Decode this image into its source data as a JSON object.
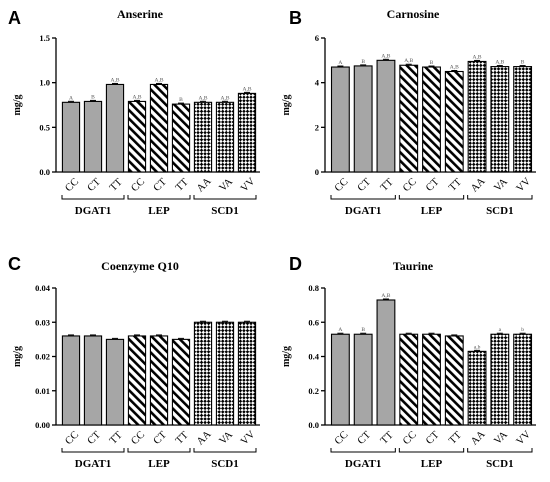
{
  "chart_data": [
    {
      "type": "bar",
      "panel": "A",
      "title": "Anserine",
      "ylabel": "mg/g",
      "ylim": [
        0,
        1.5
      ],
      "yticks": [
        0.0,
        0.5,
        1.0,
        1.5
      ],
      "ytick_labels": [
        "0.0",
        "0.5",
        "1.0",
        "1.5"
      ],
      "categories": [
        "CC",
        "CT",
        "TT",
        "CC",
        "CT",
        "TT",
        "AA",
        "VA",
        "VV"
      ],
      "groups": [
        {
          "name": "DGAT1",
          "fill": "solid"
        },
        {
          "name": "LEP",
          "fill": "diagonal"
        },
        {
          "name": "SCD1",
          "fill": "checker"
        }
      ],
      "values": [
        0.78,
        0.79,
        0.98,
        0.79,
        0.98,
        0.76,
        0.78,
        0.78,
        0.88
      ],
      "annotations": [
        "A",
        "B",
        "A,B",
        "A,B",
        "A,B",
        "B",
        "A,B",
        "A,B",
        "A,B"
      ]
    },
    {
      "type": "bar",
      "panel": "B",
      "title": "Carnosine",
      "ylabel": "mg/g",
      "ylim": [
        0,
        6
      ],
      "yticks": [
        0,
        2,
        4,
        6
      ],
      "ytick_labels": [
        "0",
        "2",
        "4",
        "6"
      ],
      "categories": [
        "CC",
        "CT",
        "TT",
        "CC",
        "CT",
        "TT",
        "AA",
        "VA",
        "VV"
      ],
      "groups": [
        {
          "name": "DGAT1",
          "fill": "solid"
        },
        {
          "name": "LEP",
          "fill": "diagonal"
        },
        {
          "name": "SCD1",
          "fill": "checker"
        }
      ],
      "values": [
        4.7,
        4.75,
        5.0,
        4.78,
        4.7,
        4.5,
        4.95,
        4.72,
        4.72
      ],
      "annotations": [
        "A",
        "B",
        "A,B",
        "A,B",
        "B",
        "A,B",
        "A,B",
        "A,B",
        "B"
      ]
    },
    {
      "type": "bar",
      "panel": "C",
      "title": "Coenzyme Q10",
      "ylabel": "mg/g",
      "ylim": [
        0,
        0.04
      ],
      "yticks": [
        0.0,
        0.01,
        0.02,
        0.03,
        0.04
      ],
      "ytick_labels": [
        "0.00",
        "0.01",
        "0.02",
        "0.03",
        "0.04"
      ],
      "categories": [
        "CC",
        "CT",
        "TT",
        "CC",
        "CT",
        "TT",
        "AA",
        "VA",
        "VV"
      ],
      "groups": [
        {
          "name": "DGAT1",
          "fill": "solid"
        },
        {
          "name": "LEP",
          "fill": "diagonal"
        },
        {
          "name": "SCD1",
          "fill": "checker"
        }
      ],
      "values": [
        0.026,
        0.026,
        0.025,
        0.026,
        0.026,
        0.025,
        0.03,
        0.03,
        0.03
      ],
      "annotations": [
        "",
        "",
        "",
        "",
        "",
        "",
        "",
        "",
        ""
      ]
    },
    {
      "type": "bar",
      "panel": "D",
      "title": "Taurine",
      "ylabel": "mg/g",
      "ylim": [
        0,
        0.8
      ],
      "yticks": [
        0.0,
        0.2,
        0.4,
        0.6,
        0.8
      ],
      "ytick_labels": [
        "0.0",
        "0.2",
        "0.4",
        "0.6",
        "0.8"
      ],
      "categories": [
        "CC",
        "CT",
        "TT",
        "CC",
        "CT",
        "TT",
        "AA",
        "VA",
        "VV"
      ],
      "groups": [
        {
          "name": "DGAT1",
          "fill": "solid"
        },
        {
          "name": "LEP",
          "fill": "diagonal"
        },
        {
          "name": "SCD1",
          "fill": "checker"
        }
      ],
      "values": [
        0.53,
        0.53,
        0.73,
        0.53,
        0.53,
        0.52,
        0.43,
        0.53,
        0.53
      ],
      "annotations": [
        "A",
        "B",
        "A,B",
        "",
        "",
        "",
        "a,b",
        "a",
        "b"
      ]
    }
  ],
  "colors": {
    "bar_gray": "#a6a6a6",
    "white": "#ffffff",
    "black": "#000000",
    "annotation_gray": "#555555"
  }
}
